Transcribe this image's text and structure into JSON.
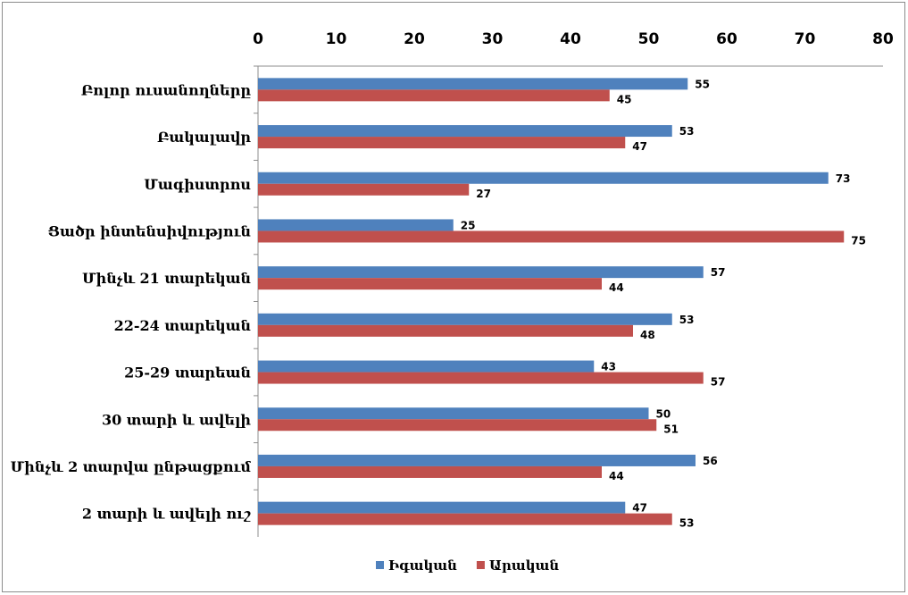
{
  "chart_data": {
    "type": "bar",
    "orientation": "horizontal",
    "x_axis_position": "top",
    "xlim": [
      0,
      80
    ],
    "x_ticks": [
      0,
      10,
      20,
      30,
      40,
      50,
      60,
      70,
      80
    ],
    "x_tick_labels": [
      "0",
      "10",
      "20",
      "30",
      "40",
      "50",
      "60",
      "70",
      "80"
    ],
    "categories": [
      "Բոլոր ուսանողները",
      "Բակալավր",
      "Մագիստրոս",
      "Ցածր ինտենսիվություն",
      "Մինչև 21 տարեկան",
      "22-24 տարեկան",
      "25-29 տարեան",
      "30 տարի և ավելի",
      "Մինչև 2 տարվա ընթացքում",
      "2 տարի և ավելի ուշ"
    ],
    "series": [
      {
        "name": "Իգական",
        "color": "#4f81bd",
        "values": [
          55,
          53,
          73,
          25,
          57,
          53,
          43,
          50,
          56,
          47
        ]
      },
      {
        "name": "Արական",
        "color": "#c0504d",
        "values": [
          45,
          47,
          27,
          75,
          44,
          48,
          57,
          51,
          44,
          53
        ]
      }
    ],
    "legend_position": "bottom",
    "grid": false,
    "title": "",
    "xlabel": "",
    "ylabel": ""
  }
}
